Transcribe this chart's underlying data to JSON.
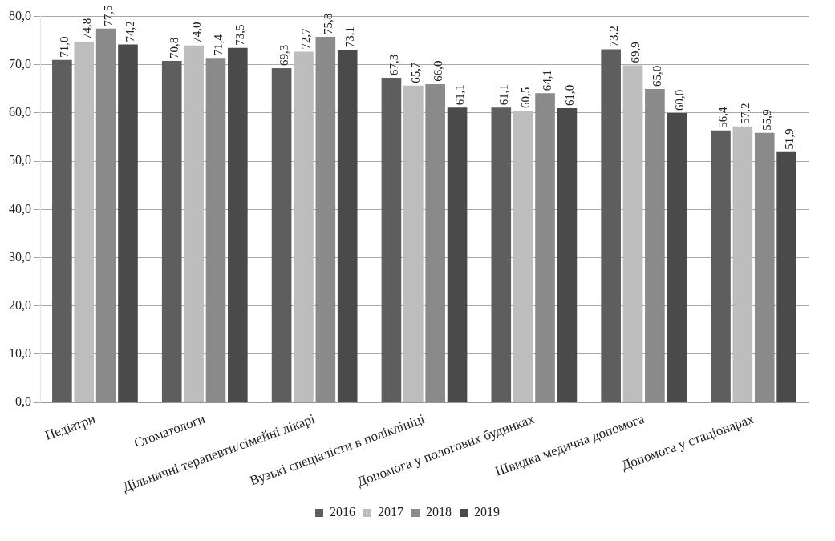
{
  "chart_data": {
    "type": "bar",
    "categories": [
      "Педіатри",
      "Стоматологи",
      "Дільничні терапевти/сімейні лікарі",
      "Вузькі спеціалісти в поліклініці",
      "Допомога у пологових будинках",
      "Швидка медична допомога",
      "Допомога у стаціонарах"
    ],
    "series": [
      {
        "name": "2016",
        "color": "#5e5e5e",
        "values": [
          71.0,
          70.8,
          69.3,
          67.3,
          61.1,
          73.2,
          56.4
        ],
        "value_labels": [
          "71,0",
          "70,8",
          "69,3",
          "67,3",
          "61,1",
          "73,2",
          "56,4"
        ]
      },
      {
        "name": "2017",
        "color": "#bdbdbd",
        "values": [
          74.8,
          74.0,
          72.7,
          65.7,
          60.5,
          69.9,
          57.2
        ],
        "value_labels": [
          "74,8",
          "74,0",
          "72,7",
          "65,7",
          "60,5",
          "69,9",
          "57,2"
        ]
      },
      {
        "name": "2018",
        "color": "#8a8a8a",
        "values": [
          77.5,
          71.4,
          75.8,
          66.0,
          64.1,
          65.0,
          55.9
        ],
        "value_labels": [
          "77,5",
          "71,4",
          "75,8",
          "66,0",
          "64,1",
          "65,0",
          "55,9"
        ]
      },
      {
        "name": "2019",
        "color": "#4a4a4a",
        "values": [
          74.2,
          73.5,
          73.1,
          61.1,
          61.0,
          60.0,
          51.9
        ],
        "value_labels": [
          "74,2",
          "73,5",
          "73,1",
          "61,1",
          "61,0",
          "60,0",
          "51,9"
        ]
      }
    ],
    "ylim": [
      0,
      80
    ],
    "yticks": [
      {
        "value": 0,
        "label": "0,0"
      },
      {
        "value": 10,
        "label": "10,0"
      },
      {
        "value": 20,
        "label": "20,0"
      },
      {
        "value": 30,
        "label": "30,0"
      },
      {
        "value": 40,
        "label": "40,0"
      },
      {
        "value": 50,
        "label": "50,0"
      },
      {
        "value": 60,
        "label": "60,0"
      },
      {
        "value": 70,
        "label": "70,0"
      },
      {
        "value": 80,
        "label": "80,0"
      }
    ],
    "grid": "y",
    "legend": "bottom"
  }
}
